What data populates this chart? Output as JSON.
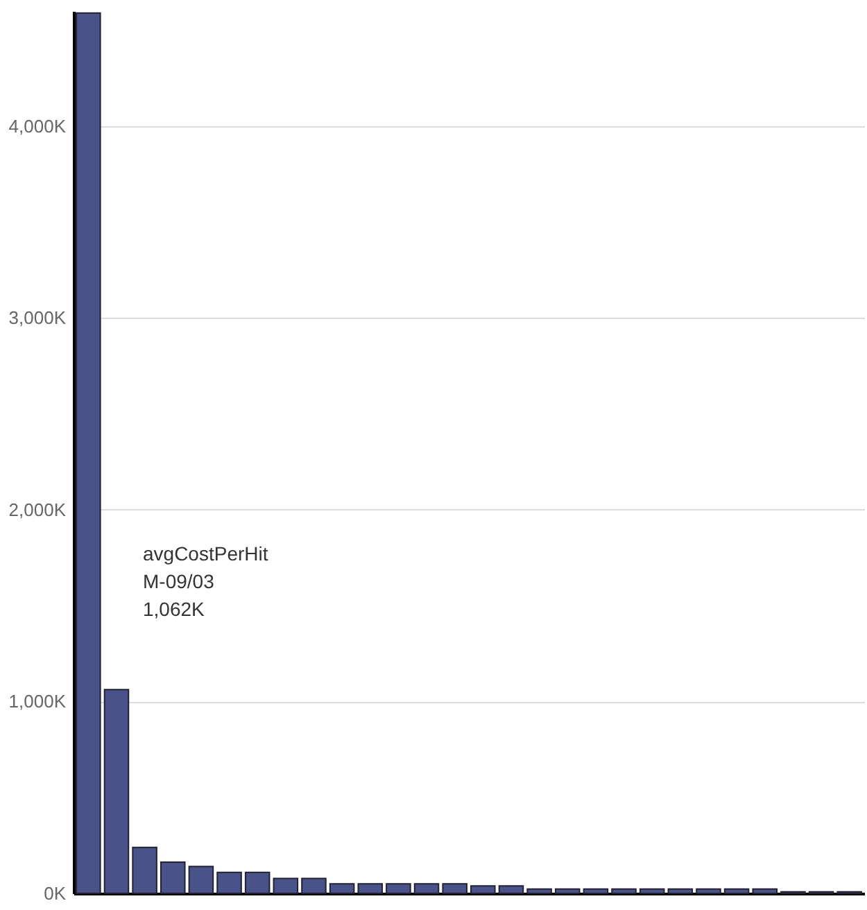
{
  "chart_data": {
    "type": "bar",
    "categories": [
      null,
      null,
      null,
      null,
      null,
      null,
      null,
      null,
      null,
      null,
      null,
      null,
      null,
      null,
      null,
      null,
      null,
      null,
      null,
      null,
      null,
      null,
      null,
      null,
      null,
      null,
      null,
      null
    ],
    "values": [
      4590,
      1062,
      240,
      163,
      140,
      109,
      109,
      78,
      78,
      50,
      50,
      50,
      50,
      50,
      39,
      39,
      23,
      23,
      23,
      23,
      23,
      23,
      23,
      23,
      23,
      8,
      8,
      8
    ],
    "color": "#4a5389",
    "ylim": [
      0,
      4600
    ],
    "yticks": [
      {
        "value": 0,
        "label": "0K"
      },
      {
        "value": 1000,
        "label": "1,000K"
      },
      {
        "value": 2000,
        "label": "2,000K"
      },
      {
        "value": 3000,
        "label": "3,000K"
      },
      {
        "value": 4000,
        "label": "4,000K"
      }
    ],
    "grid": "y",
    "tick_labels": "y",
    "annotations": [
      "avgCostPerHit\nM-09/03\n1,062K"
    ]
  }
}
